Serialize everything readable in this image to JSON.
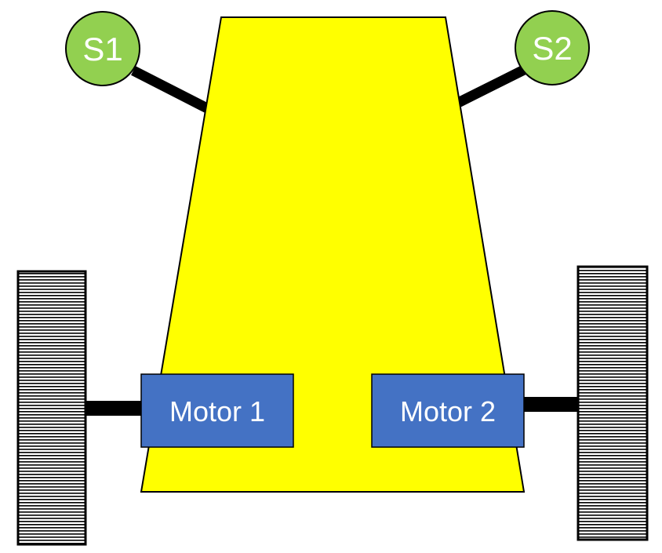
{
  "sensors": {
    "left": {
      "label": "S1"
    },
    "right": {
      "label": "S2"
    }
  },
  "motors": {
    "left": {
      "label": "Motor 1"
    },
    "right": {
      "label": "Motor 2"
    }
  },
  "colors": {
    "chassis": "#ffff00",
    "sensor": "#92d050",
    "motor": "#4472c4",
    "outline": "#000000",
    "label_light": "#ffffff"
  }
}
